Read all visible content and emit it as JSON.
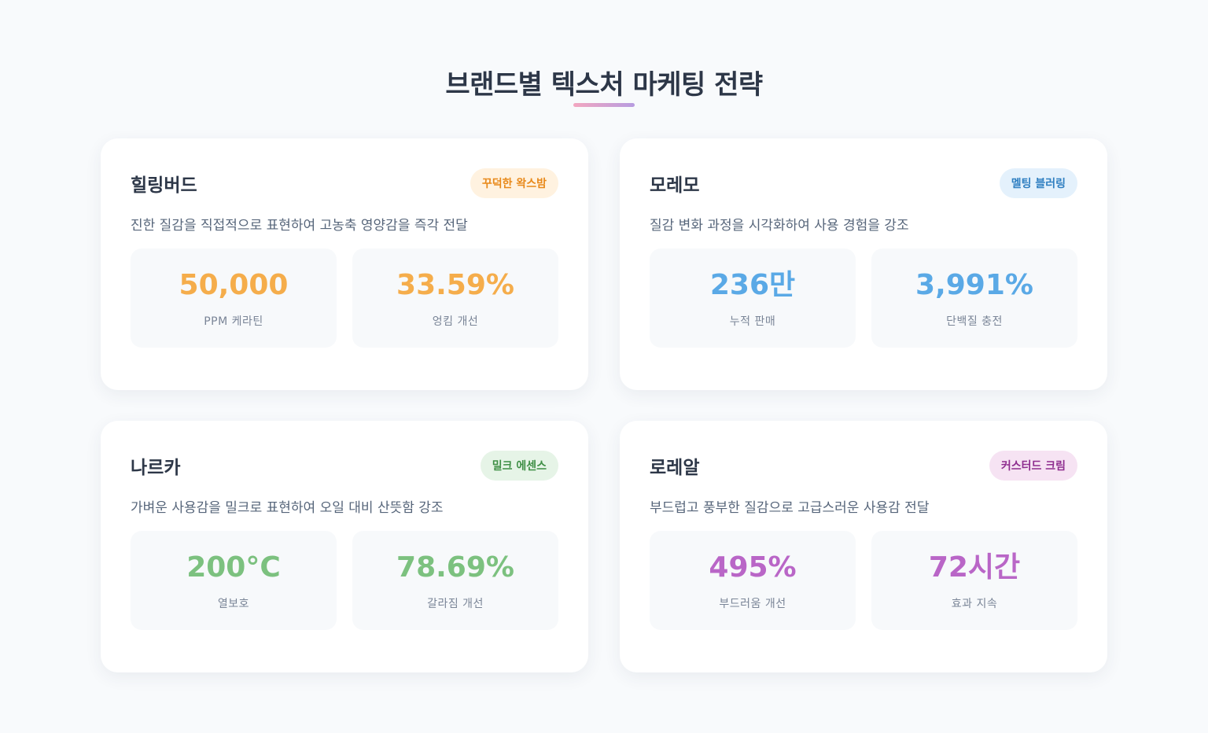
{
  "header": {
    "title": "브랜드별 텍스처 마케팅 전략"
  },
  "cards": [
    {
      "brand": "힐링버드",
      "badge": "꾸덕한 왁스밤",
      "badge_color": "#e8891a",
      "badge_bg": "#fff2e0",
      "accent": "#f5ad4b",
      "description": "진한 질감을 직접적으로 표현하여 고농축 영양감을 즉각 전달",
      "stats": [
        {
          "value": "50,000",
          "label": "PPM 케라틴"
        },
        {
          "value": "33.59%",
          "label": "엉킴 개선"
        }
      ]
    },
    {
      "brand": "모레모",
      "badge": "멜팅 블러링",
      "badge_color": "#2f7fc1",
      "badge_bg": "#e4f1fc",
      "accent": "#5aa9e6",
      "description": "질감 변화 과정을 시각화하여 사용 경험을 강조",
      "stats": [
        {
          "value": "236만",
          "label": "누적 판매"
        },
        {
          "value": "3,991%",
          "label": "단백질 충전"
        }
      ]
    },
    {
      "brand": "나르카",
      "badge": "밀크 에센스",
      "badge_color": "#3f8f46",
      "badge_bg": "#e6f4e7",
      "accent": "#7cc17f",
      "description": "가벼운 사용감을 밀크로 표현하여 오일 대비 산뜻함 강조",
      "stats": [
        {
          "value": "200°C",
          "label": "열보호"
        },
        {
          "value": "78.69%",
          "label": "갈라짐 개선"
        }
      ]
    },
    {
      "brand": "로레알",
      "badge": "커스터드 크림",
      "badge_color": "#8e2d8f",
      "badge_bg": "#f6e3f3",
      "accent": "#b966c7",
      "description": "부드럽고 풍부한 질감으로 고급스러운 사용감 전달",
      "stats": [
        {
          "value": "495%",
          "label": "부드러움 개선"
        },
        {
          "value": "72시간",
          "label": "효과 지속"
        }
      ]
    }
  ]
}
